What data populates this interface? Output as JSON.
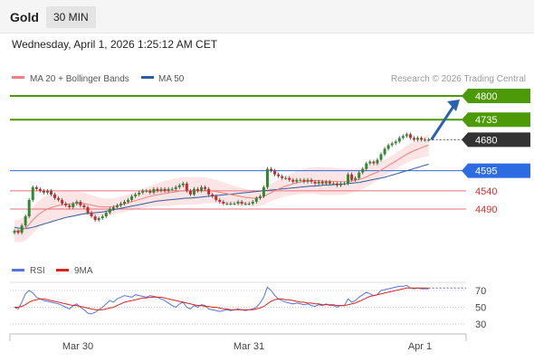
{
  "header": {
    "symbol": "Gold",
    "timeframe": "30 MIN"
  },
  "datetime": "Wednesday, April 1, 2026 1:25:12 AM CET",
  "legend": {
    "ma20_bb": "MA 20 + Bollinger Bands",
    "ma50": "MA 50",
    "credit": "Research © 2026 Trading Central",
    "rsi": "RSI",
    "rsi_ma": "9MA"
  },
  "colors": {
    "resistance": "#4c9a08",
    "pivot": "#333333",
    "support_main": "#2d6be3",
    "support": "#e8707a",
    "ma50": "#2f5d9c",
    "ma20": "#f08080",
    "bollinger_fill": "#fde0e0",
    "candle_up": "#2f8a2f",
    "candle_down": "#c92a2a",
    "arrow": "#2a62b0",
    "rsi": "#5577dd",
    "rsi_ma": "#dd2222"
  },
  "chart_data": [
    {
      "type": "candlestick",
      "x_ticks": [
        "Mar 30",
        "Mar 31",
        "Apr 1"
      ],
      "levels": [
        {
          "value": 4800,
          "label": "4800",
          "kind": "resistance"
        },
        {
          "value": 4735,
          "label": "4735",
          "kind": "resistance"
        },
        {
          "value": 4680,
          "label": "4680",
          "kind": "pivot"
        },
        {
          "value": 4595,
          "label": "4595",
          "kind": "support_main"
        },
        {
          "value": 4540,
          "label": "4540",
          "kind": "support"
        },
        {
          "value": 4490,
          "label": "4490",
          "kind": "support"
        }
      ],
      "closes": [
        4430,
        4425,
        4445,
        4470,
        4515,
        4550,
        4545,
        4540,
        4535,
        4540,
        4530,
        4520,
        4515,
        4505,
        4500,
        4495,
        4505,
        4510,
        4500,
        4495,
        4480,
        4470,
        4460,
        4465,
        4470,
        4480,
        4490,
        4495,
        4500,
        4505,
        4510,
        4515,
        4525,
        4530,
        4535,
        4540,
        4540,
        4535,
        4545,
        4540,
        4545,
        4540,
        4545,
        4545,
        4550,
        4555,
        4560,
        4540,
        4530,
        4545,
        4540,
        4550,
        4545,
        4530,
        4525,
        4515,
        4510,
        4505,
        4505,
        4505,
        4505,
        4510,
        4505,
        4505,
        4505,
        4510,
        4520,
        4525,
        4550,
        4600,
        4595,
        4585,
        4580,
        4575,
        4575,
        4570,
        4565,
        4570,
        4570,
        4565,
        4570,
        4565,
        4560,
        4565,
        4560,
        4565,
        4560,
        4560,
        4555,
        4560,
        4560,
        4585,
        4570,
        4575,
        4590,
        4600,
        4615,
        4620,
        4615,
        4625,
        4640,
        4655,
        4665,
        4670,
        4675,
        4685,
        4690,
        4695,
        4685,
        4680,
        4685,
        4680,
        4680,
        4680
      ],
      "ma20": [
        4430,
        4430,
        4432,
        4438,
        4448,
        4460,
        4470,
        4478,
        4485,
        4490,
        4494,
        4497,
        4500,
        4502,
        4503,
        4504,
        4505,
        4506,
        4506,
        4505,
        4503,
        4501,
        4499,
        4497,
        4496,
        4496,
        4496,
        4497,
        4499,
        4501,
        4504,
        4507,
        4510,
        4513,
        4516,
        4519,
        4522,
        4525,
        4527,
        4529,
        4531,
        4533,
        4534,
        4536,
        4537,
        4539,
        4540,
        4540,
        4540,
        4540,
        4540,
        4541,
        4541,
        4540,
        4539,
        4538,
        4536,
        4534,
        4532,
        4530,
        4528,
        4526,
        4524,
        4522,
        4521,
        4520,
        4520,
        4521,
        4524,
        4530,
        4535,
        4540,
        4545,
        4549,
        4553,
        4556,
        4559,
        4562,
        4564,
        4566,
        4567,
        4568,
        4568,
        4568,
        4567,
        4566,
        4566,
        4566,
        4565,
        4565,
        4565,
        4566,
        4567,
        4569,
        4571,
        4574,
        4578,
        4583,
        4587,
        4591,
        4597,
        4603,
        4609,
        4615,
        4621,
        4628,
        4634,
        4640,
        4645,
        4650,
        4654,
        4658,
        4662,
        4665
      ],
      "ma50": [
        4440,
        4438,
        4437,
        4437,
        4438,
        4440,
        4443,
        4446,
        4449,
        4452,
        4455,
        4458,
        4461,
        4464,
        4467,
        4469,
        4471,
        4473,
        4475,
        4477,
        4478,
        4479,
        4480,
        4481,
        4482,
        4484,
        4486,
        4488,
        4490,
        4492,
        4494,
        4496,
        4498,
        4500,
        4502,
        4504,
        4506,
        4508,
        4510,
        4512,
        4513,
        4514,
        4515,
        4516,
        4517,
        4518,
        4519,
        4520,
        4520,
        4521,
        4522,
        4523,
        4524,
        4525,
        4526,
        4527,
        4528,
        4529,
        4530,
        4531,
        4532,
        4533,
        4534,
        4535,
        4536,
        4537,
        4538,
        4539,
        4540,
        4541,
        4542,
        4543,
        4544,
        4545,
        4546,
        4547,
        4548,
        4549,
        4550,
        4551,
        4552,
        4553,
        4553,
        4554,
        4555,
        4556,
        4556,
        4557,
        4558,
        4558,
        4559,
        4560,
        4561,
        4562,
        4563,
        4565,
        4567,
        4569,
        4571,
        4573,
        4575,
        4577,
        4580,
        4583,
        4586,
        4589,
        4592,
        4595,
        4598,
        4601,
        4604,
        4607,
        4610,
        4613
      ]
    },
    {
      "type": "line",
      "y_ticks": [
        70,
        50,
        30
      ],
      "rsi": [
        50,
        48,
        56,
        66,
        70,
        67,
        62,
        60,
        58,
        57,
        56,
        55,
        54,
        52,
        50,
        48,
        52,
        54,
        50,
        47,
        43,
        42,
        44,
        47,
        50,
        54,
        58,
        56,
        60,
        62,
        64,
        63,
        62,
        65,
        64,
        63,
        62,
        64,
        63,
        62,
        60,
        58,
        55,
        52,
        50,
        54,
        56,
        50,
        48,
        52,
        50,
        53,
        52,
        48,
        47,
        46,
        45,
        46,
        47,
        46,
        47,
        48,
        47,
        46,
        47,
        48,
        50,
        55,
        62,
        74,
        70,
        64,
        60,
        58,
        56,
        55,
        54,
        55,
        54,
        53,
        54,
        52,
        51,
        53,
        52,
        54,
        52,
        52,
        50,
        52,
        52,
        60,
        56,
        58,
        62,
        65,
        68,
        66,
        64,
        65,
        70,
        71,
        72,
        73,
        74,
        75,
        75,
        76,
        73,
        72,
        73,
        72,
        72,
        72
      ],
      "rsi_ma": [
        50,
        50,
        51,
        53,
        56,
        58,
        59,
        60,
        60,
        59,
        58,
        57,
        56,
        55,
        54,
        53,
        52,
        52,
        51,
        50,
        49,
        48,
        47,
        47,
        47,
        48,
        49,
        50,
        52,
        54,
        56,
        57,
        58,
        59,
        60,
        61,
        61,
        62,
        62,
        62,
        62,
        61,
        60,
        59,
        58,
        57,
        56,
        55,
        54,
        53,
        52,
        52,
        51,
        51,
        50,
        50,
        49,
        48,
        48,
        47,
        47,
        47,
        47,
        47,
        47,
        47,
        48,
        49,
        51,
        54,
        57,
        59,
        60,
        60,
        59,
        59,
        58,
        57,
        56,
        56,
        55,
        55,
        54,
        54,
        53,
        53,
        53,
        53,
        52,
        52,
        52,
        53,
        54,
        55,
        57,
        59,
        61,
        63,
        64,
        65,
        66,
        67,
        68,
        69,
        70,
        71,
        72,
        73,
        73,
        73,
        73,
        73,
        73,
        73
      ]
    }
  ]
}
